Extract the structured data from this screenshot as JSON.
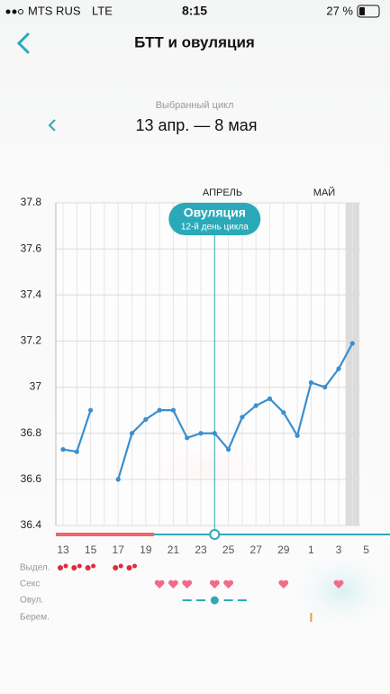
{
  "status_bar": {
    "carrier": "MTS RUS",
    "network": "LTE",
    "time": "8:15",
    "battery": "27 %"
  },
  "header": {
    "title": "БТТ и овуляция"
  },
  "cycle": {
    "label": "Выбранный цикл",
    "range": "13 апр. — 8 мая"
  },
  "chart_data": {
    "type": "line",
    "categories": [
      "13",
      null,
      "15",
      null,
      "17",
      null,
      "19",
      null,
      "21",
      null,
      "23",
      null,
      "25",
      null,
      "27",
      null,
      "29",
      null,
      "1",
      null,
      "3",
      null,
      "5"
    ],
    "values": [
      36.73,
      36.72,
      36.9,
      null,
      36.6,
      36.8,
      36.86,
      36.9,
      36.9,
      36.78,
      36.8,
      36.8,
      36.73,
      36.87,
      36.92,
      36.95,
      36.89,
      36.79,
      37.02,
      37.0,
      37.08,
      37.19,
      null
    ],
    "color": "#3a8fcf",
    "ylim": [
      36.4,
      37.8
    ],
    "yticks": [
      36.4,
      36.6,
      36.8,
      37,
      37.2,
      37.4,
      37.6,
      37.8
    ],
    "grid": true,
    "months": [
      "АПРЕЛЬ",
      "МАЙ"
    ],
    "ovulation": {
      "title": "Овуляция",
      "subtitle": "12-й день цикла"
    },
    "rows": [
      {
        "label": "Выдел.",
        "days": [
          0,
          1,
          2,
          4,
          5
        ]
      },
      {
        "label": "Секс",
        "days": [
          7,
          8,
          9,
          11,
          12,
          16,
          20
        ]
      },
      {
        "label": "Овул.",
        "days": [
          9,
          10,
          11,
          12,
          13
        ]
      },
      {
        "label": "Берем.",
        "days": [
          18
        ]
      }
    ]
  }
}
